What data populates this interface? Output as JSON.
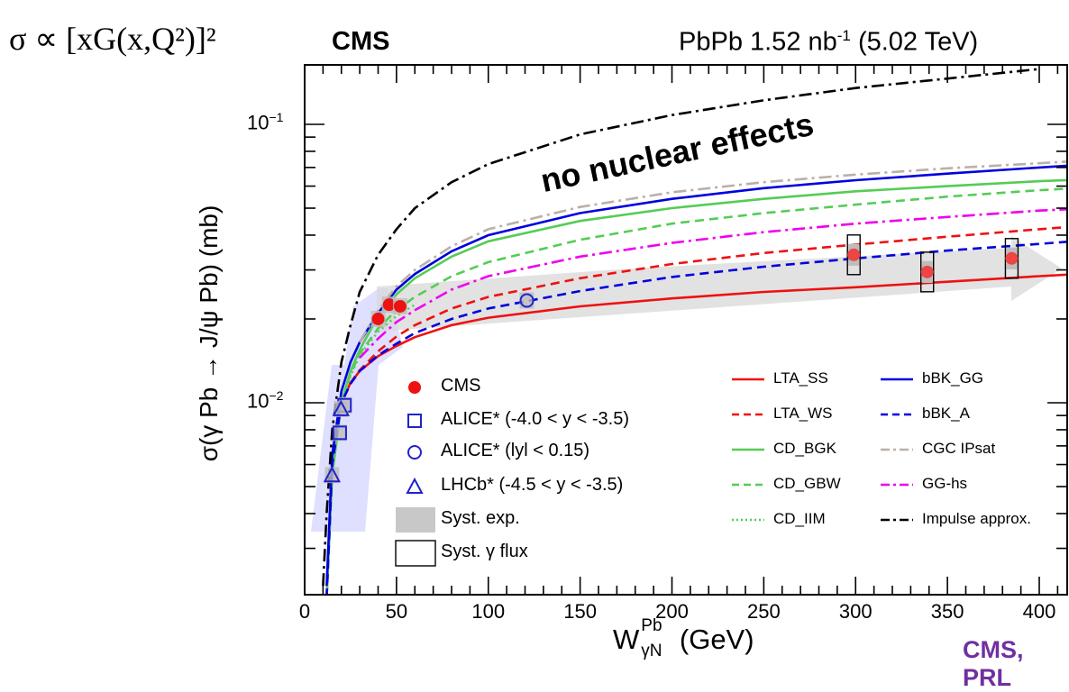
{
  "header": {
    "formula": "σ ∝ [xG(x,Q²)]²",
    "experiment": "CMS",
    "lumi_prefix": "PbPb 1.52 nb",
    "lumi_exp": "-1",
    "lumi_suffix": " (5.02 TeV)",
    "reference": "CMS, PRL"
  },
  "chart_data": {
    "type": "scatter",
    "xlabel_main": "W",
    "xlabel_sup": "Pb",
    "xlabel_sub": "γN",
    "xlabel_unit": " (GeV)",
    "ylabel": "σ(γ Pb → J/ψ Pb) (mb)",
    "xlim": [
      0,
      430
    ],
    "ylim": [
      0.0022,
      0.16
    ],
    "yscale": "log",
    "x_ticks": [
      "0",
      "50",
      "100",
      "150",
      "200",
      "250",
      "300",
      "350",
      "400"
    ],
    "y_ticks": [
      {
        "base": "10",
        "exp": "−1"
      },
      {
        "base": "10",
        "exp": "−2"
      }
    ],
    "annotation": "no nuclear effects",
    "data_series": [
      {
        "name": "CMS",
        "marker": "circle-filled",
        "color": "#ee1111",
        "x": [
          40,
          46,
          52,
          299,
          339,
          385
        ],
        "y": [
          0.02,
          0.0225,
          0.0222,
          0.034,
          0.0295,
          0.033
        ]
      },
      {
        "name": "ALICE* (-4.0 < y < -3.5)",
        "marker": "square-open",
        "color": "#2222cc",
        "x": [
          19.1,
          21.7
        ],
        "y": [
          0.0078,
          0.0098
        ]
      },
      {
        "name": "ALICE* (lyl < 0.15)",
        "marker": "circle-open",
        "color": "#2222cc",
        "x": [
          121
        ],
        "y": [
          0.0233
        ]
      },
      {
        "name": "LHCb* (-4.5 < y < -3.5)",
        "marker": "triangle-open",
        "color": "#2222cc",
        "x": [
          14.9,
          19.8
        ],
        "y": [
          0.0055,
          0.0095
        ]
      }
    ],
    "model_series": [
      {
        "name": "LTA_SS",
        "color": "#ee1111",
        "dash": "solid"
      },
      {
        "name": "LTA_WS",
        "color": "#ee1111",
        "dash": "dashed"
      },
      {
        "name": "CD_BGK",
        "color": "#55cc55",
        "dash": "solid"
      },
      {
        "name": "CD_GBW",
        "color": "#55cc55",
        "dash": "dashed"
      },
      {
        "name": "CD_IIM",
        "color": "#55cc55",
        "dash": "dotted"
      },
      {
        "name": "bBK_GG",
        "color": "#0000dd",
        "dash": "solid"
      },
      {
        "name": "bBK_A",
        "color": "#0000dd",
        "dash": "dashed"
      },
      {
        "name": "CGC IPsat",
        "color": "#bbb0a8",
        "dash": "dashdot"
      },
      {
        "name": "GG-hs",
        "color": "#ee00ee",
        "dash": "dashdot"
      },
      {
        "name": "Impulse approx.",
        "color": "#000000",
        "dash": "dashdot"
      }
    ],
    "model_curves": {
      "LTA_SS": {
        "x": [
          12,
          15,
          20,
          25,
          30,
          40,
          50,
          60,
          80,
          100,
          150,
          200,
          250,
          300,
          350,
          400,
          430
        ],
        "y": [
          0.002,
          0.0062,
          0.01,
          0.0118,
          0.013,
          0.0147,
          0.016,
          0.0172,
          0.019,
          0.0202,
          0.0222,
          0.0237,
          0.025,
          0.026,
          0.0272,
          0.0285,
          0.0292
        ]
      },
      "LTA_WS": {
        "x": [
          12,
          15,
          20,
          25,
          30,
          40,
          50,
          60,
          80,
          100,
          150,
          200,
          250,
          300,
          350,
          400,
          430
        ],
        "y": [
          0.002,
          0.0062,
          0.01,
          0.0118,
          0.0131,
          0.0153,
          0.0173,
          0.019,
          0.0218,
          0.024,
          0.028,
          0.0315,
          0.0345,
          0.037,
          0.0395,
          0.042,
          0.0435
        ]
      },
      "CD_BGK": {
        "x": [
          12,
          15,
          20,
          25,
          30,
          40,
          50,
          60,
          80,
          100,
          150,
          200,
          250,
          300,
          350,
          400,
          430
        ],
        "y": [
          0.002,
          0.0055,
          0.01,
          0.013,
          0.0155,
          0.0205,
          0.0245,
          0.028,
          0.0335,
          0.038,
          0.045,
          0.05,
          0.054,
          0.0575,
          0.06,
          0.0625,
          0.0635
        ]
      },
      "CD_GBW": {
        "x": [
          12,
          15,
          20,
          25,
          30,
          40,
          50,
          60,
          80,
          100,
          150,
          200,
          250,
          300,
          350,
          400,
          430
        ],
        "y": [
          0.002,
          0.0058,
          0.01,
          0.0127,
          0.015,
          0.0185,
          0.0215,
          0.024,
          0.0285,
          0.032,
          0.0385,
          0.044,
          0.048,
          0.0515,
          0.055,
          0.058,
          0.0595
        ]
      },
      "CD_IIM": {
        "x": [
          12,
          15,
          20,
          25,
          30,
          40,
          50,
          60
        ],
        "y": [
          0.002,
          0.0058,
          0.01,
          0.0125,
          0.0148,
          0.018,
          0.0205,
          0.0225
        ]
      },
      "bBK_GG": {
        "x": [
          12,
          15,
          20,
          25,
          30,
          40,
          50,
          60,
          80,
          100,
          150,
          200,
          250,
          300,
          350,
          400,
          430
        ],
        "y": [
          0.0022,
          0.0065,
          0.011,
          0.014,
          0.0165,
          0.021,
          0.0255,
          0.029,
          0.035,
          0.04,
          0.048,
          0.054,
          0.059,
          0.063,
          0.0665,
          0.07,
          0.072
        ]
      },
      "bBK_A": {
        "x": [
          12,
          15,
          20,
          25,
          30,
          40,
          50,
          60,
          80,
          100,
          150,
          200,
          250,
          300,
          350,
          400,
          430
        ],
        "y": [
          0.002,
          0.006,
          0.01,
          0.0117,
          0.013,
          0.0148,
          0.0163,
          0.0178,
          0.02,
          0.0218,
          0.0252,
          0.0283,
          0.0308,
          0.033,
          0.0352,
          0.0372,
          0.0385
        ]
      },
      "CGC IPsat": {
        "x": [
          30,
          40,
          50,
          60,
          80,
          100,
          150,
          200,
          250,
          300,
          350,
          400,
          430
        ],
        "y": [
          0.0165,
          0.0215,
          0.0262,
          0.03,
          0.0365,
          0.042,
          0.0505,
          0.057,
          0.062,
          0.066,
          0.0695,
          0.0725,
          0.0745
        ]
      },
      "GG-hs": {
        "x": [
          30,
          40,
          50,
          60,
          80,
          100,
          150,
          200,
          250,
          300,
          350,
          400,
          430
        ],
        "y": [
          0.0145,
          0.017,
          0.0195,
          0.0215,
          0.0255,
          0.0285,
          0.0335,
          0.0375,
          0.041,
          0.044,
          0.0465,
          0.049,
          0.05
        ]
      },
      "Impulse approx.": {
        "x": [
          10,
          12,
          15,
          20,
          25,
          30,
          40,
          50,
          60,
          80,
          100,
          150,
          200,
          250,
          300,
          350,
          400
        ],
        "y": [
          0.0022,
          0.004,
          0.008,
          0.014,
          0.019,
          0.025,
          0.034,
          0.042,
          0.05,
          0.062,
          0.072,
          0.092,
          0.108,
          0.122,
          0.135,
          0.146,
          0.158
        ]
      }
    },
    "legend_left": [
      {
        "label": "CMS",
        "symbol": "circle-filled"
      },
      {
        "label": "ALICE* (-4.0 < y < -3.5)",
        "symbol": "square-open"
      },
      {
        "label": "ALICE* (lyl < 0.15)",
        "symbol": "circle-open"
      },
      {
        "label": "LHCb* (-4.5 < y < -3.5)",
        "symbol": "triangle-open"
      },
      {
        "label": "Syst. exp.",
        "symbol": "gray-box"
      },
      {
        "label": "Syst. γ flux",
        "symbol": "open-box"
      }
    ]
  }
}
